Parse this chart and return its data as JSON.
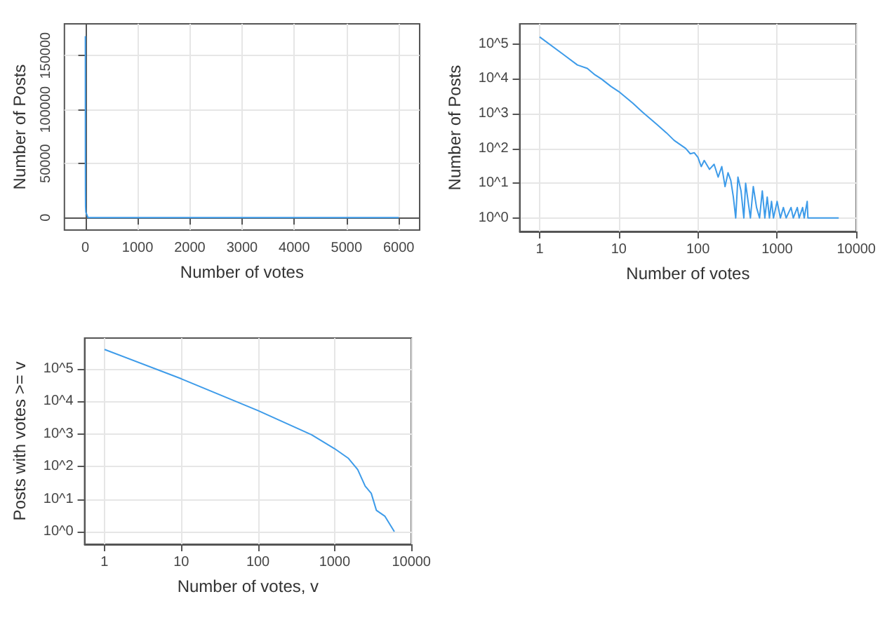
{
  "chart_data": [
    {
      "type": "line",
      "xlabel": "Number of votes",
      "ylabel": "Number of Posts",
      "xlim": [
        -400,
        6400
      ],
      "ylim": [
        -11600,
        179300
      ],
      "xticks": [
        0,
        1000,
        2000,
        3000,
        4000,
        5000,
        6000
      ],
      "yticks": [
        0,
        50000,
        100000,
        150000
      ],
      "grid": true,
      "marker": "none",
      "series": [
        {
          "color": "#3d9be9",
          "x": [
            1,
            2,
            3,
            5,
            10,
            50,
            6000
          ],
          "values": [
            168000,
            50000,
            25000,
            10000,
            5000,
            0,
            0
          ]
        }
      ]
    },
    {
      "type": "line",
      "xlabel": "Number of votes",
      "ylabel": "Number of Posts",
      "log": "xy",
      "xlim": [
        0.56,
        10000
      ],
      "ylim": [
        0.41,
        380000
      ],
      "xticks": [
        1,
        10,
        100,
        1000,
        10000
      ],
      "yticks": [
        {
          "value": 1,
          "label": "10^0"
        },
        {
          "value": 10,
          "label": "10^1"
        },
        {
          "value": 100,
          "label": "10^2"
        },
        {
          "value": 1000,
          "label": "10^3"
        },
        {
          "value": 10000,
          "label": "10^4"
        },
        {
          "value": 100000,
          "label": "10^5"
        }
      ],
      "grid": true,
      "marker": "none",
      "series": [
        {
          "color": "#3d9be9",
          "x": [
            1,
            2,
            3,
            4,
            5,
            6,
            8,
            10,
            15,
            20,
            30,
            40,
            50,
            70,
            80,
            90,
            100,
            110,
            120,
            140,
            160,
            180,
            200,
            220,
            240,
            260,
            280,
            300,
            320,
            350,
            380,
            400,
            430,
            460,
            500,
            550,
            600,
            650,
            700,
            750,
            800,
            850,
            900,
            1000,
            1100,
            1200,
            1300,
            1500,
            1600,
            1800,
            1900,
            2100,
            2200,
            2400,
            2450,
            6000
          ],
          "values": [
            160000,
            50000,
            25000,
            20000,
            13000,
            10000,
            6000,
            4300,
            2000,
            1100,
            500,
            280,
            170,
            100,
            70,
            75,
            55,
            30,
            45,
            25,
            35,
            15,
            30,
            8,
            20,
            12,
            4,
            1,
            15,
            6,
            1,
            10,
            3,
            1,
            8,
            2,
            1,
            6,
            1,
            4,
            1,
            3,
            1,
            3,
            1,
            2,
            1,
            2,
            1,
            2,
            1,
            2,
            1,
            3,
            1,
            1
          ]
        }
      ]
    },
    {
      "type": "line",
      "xlabel": "Number of votes, v",
      "ylabel": "Posts with votes >= v",
      "log": "xy",
      "xlim": [
        0.55,
        10000
      ],
      "ylim": [
        0.41,
        870000
      ],
      "xticks": [
        1,
        10,
        100,
        1000,
        10000
      ],
      "yticks": [
        {
          "value": 1,
          "label": "10^0"
        },
        {
          "value": 10,
          "label": "10^1"
        },
        {
          "value": 100,
          "label": "10^2"
        },
        {
          "value": 1000,
          "label": "10^3"
        },
        {
          "value": 10000,
          "label": "10^4"
        },
        {
          "value": 100000,
          "label": "10^5"
        }
      ],
      "grid": true,
      "marker": "none",
      "series": [
        {
          "color": "#3d9be9",
          "x": [
            1,
            10,
            100,
            500,
            1000,
            1500,
            2000,
            2500,
            3000,
            3500,
            4500,
            6000
          ],
          "values": [
            390000,
            49000,
            5200,
            940,
            350,
            180,
            80,
            25,
            15,
            4.5,
            3,
            1
          ]
        }
      ]
    }
  ]
}
